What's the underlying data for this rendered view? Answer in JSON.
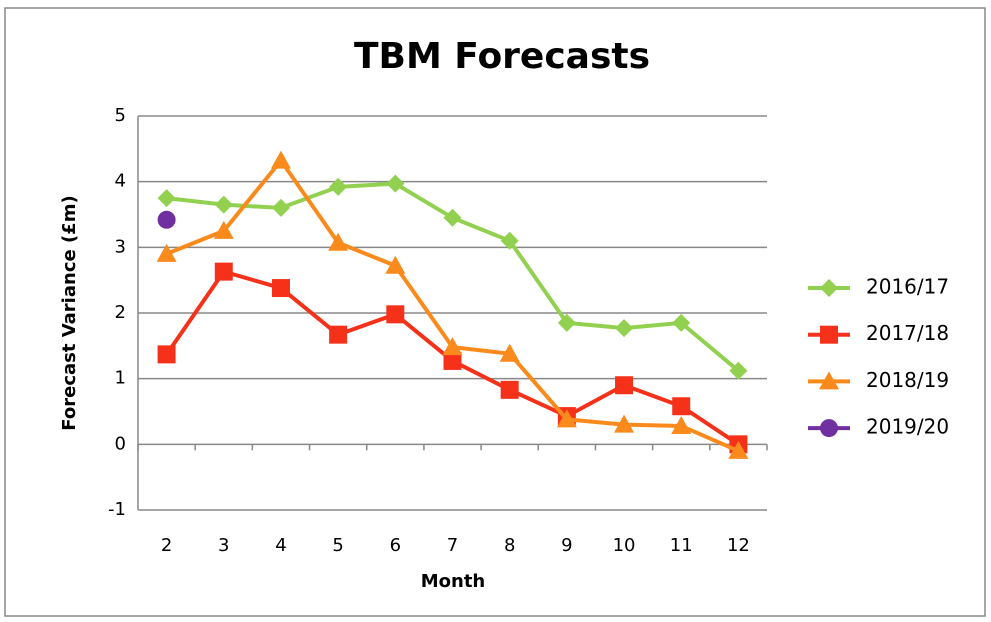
{
  "chart_data": {
    "type": "line",
    "title": "TBM Forecasts",
    "x_label": "Month",
    "y_label": "Forecast Variance (£m)",
    "categories": [
      "2",
      "3",
      "4",
      "5",
      "6",
      "7",
      "8",
      "9",
      "10",
      "11",
      "12"
    ],
    "ylim": [
      -1,
      5
    ],
    "yticks": [
      -1,
      0,
      1,
      2,
      3,
      4,
      5
    ],
    "grid": true,
    "legend": "right",
    "series": [
      {
        "name": "2016/17",
        "color": "#92d050",
        "marker": "diamond",
        "values": [
          3.75,
          3.65,
          3.6,
          3.92,
          3.97,
          3.45,
          3.1,
          1.85,
          1.77,
          1.85,
          1.12
        ]
      },
      {
        "name": "2017/18",
        "color": "#f5311a",
        "marker": "square",
        "values": [
          1.37,
          2.63,
          2.38,
          1.67,
          1.98,
          1.27,
          0.83,
          0.43,
          0.9,
          0.58,
          0.0
        ]
      },
      {
        "name": "2018/19",
        "color": "#fb8a1c",
        "marker": "triangle",
        "values": [
          2.9,
          3.25,
          4.32,
          3.07,
          2.72,
          1.48,
          1.38,
          0.38,
          0.3,
          0.28,
          -0.1
        ]
      },
      {
        "name": "2019/20",
        "color": "#7030a0",
        "marker": "circle",
        "values": [
          3.42,
          null,
          null,
          null,
          null,
          null,
          null,
          null,
          null,
          null,
          null
        ]
      }
    ]
  }
}
